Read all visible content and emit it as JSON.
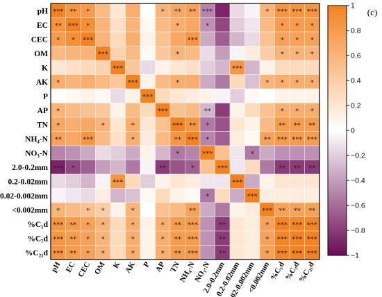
{
  "chart_data": {
    "type": "heatmap",
    "panel_label": "(c)",
    "labels": [
      "pH",
      "EC",
      "CEC",
      "OM",
      "K",
      "AK",
      "P",
      "AP",
      "TN",
      "NH₄-N",
      "NO₃-N",
      "2.0-0.2mm",
      "0.2-0.02mm",
      "0.02-0.002mm",
      "<0.002mm",
      "%C₁d",
      "%C₇d",
      "%C₂₁d"
    ],
    "colorbar": {
      "min": -1,
      "max": 1,
      "ticks": [
        -1,
        -0.8,
        -0.6,
        -0.4,
        -0.2,
        0,
        0.2,
        0.4,
        0.6,
        0.8,
        1
      ],
      "tick_labels": [
        "−1",
        "−0.8",
        "−0.6",
        "−0.4",
        "−0.2",
        "0",
        "0.2",
        "0.4",
        "0.6",
        "0.8",
        "1"
      ],
      "colors": {
        "negative": "#6b0b56",
        "zero": "#ffffff",
        "positive": "#f58220"
      }
    },
    "values": [
      [
        1.0,
        0.85,
        0.8,
        0.55,
        0.2,
        0.65,
        0.0,
        0.6,
        0.7,
        0.75,
        -0.5,
        -0.9,
        -0.15,
        -0.05,
        0.6,
        0.85,
        0.85,
        0.85
      ],
      [
        0.85,
        1.0,
        0.9,
        0.6,
        0.25,
        0.6,
        0.05,
        0.55,
        0.65,
        0.7,
        -0.45,
        -0.75,
        -0.2,
        -0.1,
        0.55,
        0.8,
        0.8,
        0.8
      ],
      [
        0.8,
        0.9,
        1.0,
        0.6,
        0.3,
        0.65,
        0.1,
        0.5,
        0.7,
        0.85,
        -0.35,
        -0.65,
        -0.3,
        -0.15,
        0.5,
        0.75,
        0.75,
        0.75
      ],
      [
        0.55,
        0.6,
        0.6,
        1.0,
        0.35,
        0.55,
        0.05,
        0.45,
        0.6,
        0.55,
        -0.15,
        -0.4,
        -0.05,
        0.15,
        0.4,
        0.6,
        0.6,
        0.6
      ],
      [
        0.2,
        0.25,
        0.3,
        0.35,
        1.0,
        0.45,
        -0.15,
        0.1,
        0.2,
        0.25,
        -0.2,
        -0.3,
        0.85,
        -0.3,
        0.1,
        0.3,
        0.3,
        0.3
      ],
      [
        0.65,
        0.6,
        0.65,
        0.55,
        0.45,
        1.0,
        0.1,
        0.55,
        0.65,
        0.65,
        -0.35,
        -0.55,
        0.3,
        -0.25,
        0.6,
        0.65,
        0.65,
        0.65
      ],
      [
        0.0,
        0.05,
        0.1,
        0.05,
        -0.15,
        0.1,
        1.0,
        0.3,
        0.2,
        0.15,
        0.1,
        -0.05,
        -0.2,
        0.05,
        0.0,
        0.1,
        0.1,
        0.1
      ],
      [
        0.6,
        0.55,
        0.5,
        0.45,
        0.1,
        0.55,
        0.3,
        1.0,
        0.5,
        0.55,
        -0.3,
        -0.8,
        0.1,
        0.3,
        0.5,
        0.65,
        0.65,
        0.65
      ],
      [
        0.7,
        0.65,
        0.7,
        0.6,
        0.2,
        0.65,
        0.2,
        0.5,
        1.0,
        0.85,
        -0.55,
        -0.7,
        0.2,
        0.1,
        0.55,
        0.8,
        0.8,
        0.8
      ],
      [
        0.75,
        0.7,
        0.85,
        0.55,
        0.25,
        0.65,
        0.15,
        0.55,
        0.85,
        1.0,
        -0.5,
        -0.65,
        0.15,
        0.05,
        0.75,
        0.8,
        0.8,
        0.8
      ],
      [
        -0.5,
        -0.45,
        -0.35,
        -0.15,
        -0.2,
        -0.35,
        0.1,
        -0.3,
        -0.55,
        -0.5,
        1.0,
        0.5,
        -0.1,
        -0.55,
        -0.35,
        -0.45,
        -0.45,
        -0.45
      ],
      [
        -0.9,
        -0.75,
        -0.65,
        -0.4,
        -0.3,
        -0.55,
        -0.05,
        -0.8,
        -0.7,
        -0.65,
        0.5,
        1.0,
        -0.1,
        0.3,
        -0.55,
        -0.8,
        -0.8,
        -0.8
      ],
      [
        -0.15,
        -0.2,
        -0.3,
        -0.05,
        0.85,
        0.3,
        -0.2,
        0.1,
        0.2,
        0.15,
        -0.1,
        -0.1,
        1.0,
        -0.35,
        0.1,
        0.2,
        0.2,
        0.2
      ],
      [
        -0.05,
        -0.1,
        -0.15,
        0.15,
        -0.3,
        -0.25,
        0.05,
        0.3,
        0.1,
        0.05,
        -0.55,
        0.3,
        -0.35,
        1.0,
        0.15,
        0.15,
        0.15,
        0.15
      ],
      [
        0.6,
        0.55,
        0.5,
        0.4,
        0.1,
        0.6,
        0.0,
        0.5,
        0.55,
        0.75,
        -0.35,
        -0.55,
        0.1,
        0.15,
        1.0,
        0.75,
        0.75,
        0.75
      ],
      [
        0.85,
        0.8,
        0.75,
        0.6,
        0.3,
        0.65,
        0.1,
        0.65,
        0.8,
        0.8,
        -0.45,
        -0.8,
        0.2,
        0.15,
        0.75,
        1.0,
        0.98,
        0.98
      ],
      [
        0.85,
        0.8,
        0.75,
        0.6,
        0.3,
        0.65,
        0.1,
        0.65,
        0.8,
        0.8,
        -0.45,
        -0.8,
        0.2,
        0.15,
        0.75,
        0.98,
        1.0,
        0.99
      ],
      [
        0.85,
        0.8,
        0.75,
        0.6,
        0.3,
        0.65,
        0.1,
        0.65,
        0.8,
        0.8,
        -0.45,
        -0.8,
        0.2,
        0.15,
        0.75,
        0.98,
        0.99,
        1.0
      ]
    ],
    "significance": [
      [
        "***",
        "**",
        "*",
        "",
        "",
        "",
        "",
        "*",
        "**",
        "**",
        "***",
        "",
        "",
        "",
        "*",
        "***",
        "***",
        "***"
      ],
      [
        "**",
        "***",
        "*",
        "",
        "",
        "",
        "",
        "",
        "*",
        "",
        "*",
        "",
        "",
        "",
        "",
        "*",
        "*",
        "*"
      ],
      [
        "*",
        "*",
        "***",
        "",
        "",
        "",
        "",
        "",
        "",
        "***",
        "",
        "",
        "",
        "",
        "",
        "*",
        "*",
        "*"
      ],
      [
        "",
        "",
        "",
        "***",
        "",
        "",
        "",
        "",
        "*",
        "",
        "",
        "",
        "",
        "",
        "",
        "*",
        "*",
        "*"
      ],
      [
        "",
        "",
        "",
        "",
        "***",
        "",
        "",
        "",
        "",
        "",
        "",
        "",
        "***",
        "",
        "",
        "",
        "",
        ""
      ],
      [
        "*",
        "",
        "",
        "",
        "",
        "***",
        "",
        "",
        "*",
        "",
        "",
        "",
        "",
        "",
        "*",
        "*",
        "*",
        "*"
      ],
      [
        "",
        "",
        "",
        "",
        "",
        "",
        "***",
        "",
        "",
        "",
        "",
        "",
        "",
        "",
        "",
        "",
        "",
        ""
      ],
      [
        "*",
        "",
        "",
        "",
        "",
        "",
        "",
        "***",
        "",
        "",
        "**",
        "",
        "",
        "",
        "",
        "*",
        "*",
        "*"
      ],
      [
        "*",
        "",
        "",
        "*",
        "",
        "*",
        "",
        "",
        "***",
        "**",
        "*",
        "",
        "",
        "",
        "",
        "**",
        "**",
        "**"
      ],
      [
        "**",
        "",
        "***",
        "",
        "",
        "*",
        "",
        "",
        "**",
        "***",
        "*",
        "",
        "",
        "",
        "**",
        "***",
        "***",
        "***"
      ],
      [
        "",
        "",
        "",
        "",
        "",
        "",
        "",
        "",
        "*",
        "",
        "***",
        "",
        "",
        "*",
        "",
        "",
        "",
        ""
      ],
      [
        "***",
        "*",
        "",
        "",
        "",
        "",
        "",
        "**",
        "",
        "*",
        "",
        "***",
        "",
        "",
        "",
        "**",
        "**",
        "**"
      ],
      [
        "",
        "",
        "",
        "",
        "***",
        "",
        "",
        "",
        "",
        "",
        "",
        "",
        "***",
        "",
        "",
        "",
        "",
        ""
      ],
      [
        "",
        "",
        "",
        "",
        "",
        "",
        "",
        "",
        "",
        "",
        "*",
        "",
        "",
        "***",
        "",
        "",
        "",
        ""
      ],
      [
        "*",
        "",
        "*",
        "*",
        "",
        "*",
        "",
        "",
        "",
        "**",
        "",
        "",
        "",
        "",
        "***",
        "**",
        "**",
        "**"
      ],
      [
        "***",
        "**",
        "*",
        "*",
        "",
        "*",
        "",
        "*",
        "**",
        "***",
        "",
        "**",
        "",
        "",
        "*",
        "***",
        "***",
        "***"
      ],
      [
        "***",
        "**",
        "*",
        "*",
        "",
        "*",
        "",
        "*",
        "**",
        "***",
        "",
        "**",
        "",
        "",
        "*",
        "***",
        "***",
        "***"
      ],
      [
        "***",
        "**",
        "*",
        "*",
        "",
        "*",
        "",
        "*",
        "**",
        "***",
        "",
        "**",
        "",
        "",
        "*",
        "***",
        "***",
        "***"
      ]
    ]
  }
}
